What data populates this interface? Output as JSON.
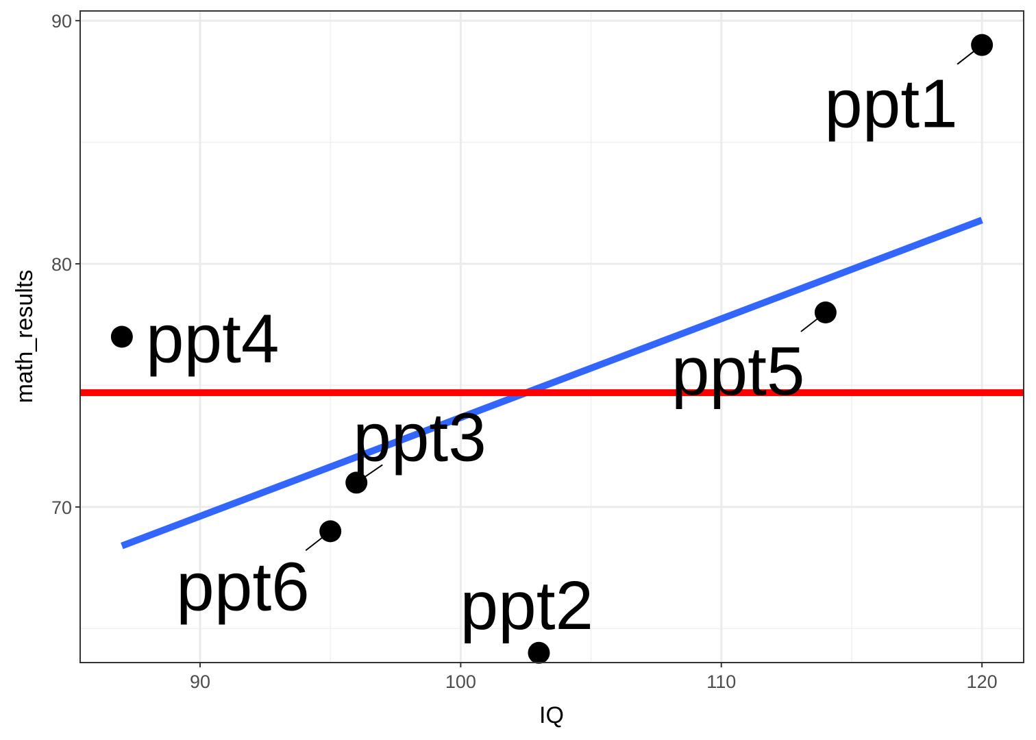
{
  "chart_data": {
    "type": "scatter",
    "title": "",
    "xlabel": "IQ",
    "ylabel": "math_results",
    "xlim": [
      85.4,
      121.6
    ],
    "ylim": [
      63.6,
      90.4
    ],
    "x_ticks": [
      90,
      100,
      110,
      120
    ],
    "y_ticks": [
      70,
      80,
      90
    ],
    "grid": true,
    "points": [
      {
        "label": "ppt1",
        "x": 120,
        "y": 89
      },
      {
        "label": "ppt2",
        "x": 103,
        "y": 64
      },
      {
        "label": "ppt3",
        "x": 96,
        "y": 71
      },
      {
        "label": "ppt4",
        "x": 87,
        "y": 77
      },
      {
        "label": "ppt5",
        "x": 114,
        "y": 78
      },
      {
        "label": "ppt6",
        "x": 95,
        "y": 69
      }
    ],
    "regression_line": {
      "x": [
        87,
        120
      ],
      "y": [
        68.4,
        81.8
      ],
      "color": "#3366FF"
    },
    "mean_line": {
      "y": 74.7,
      "color": "#FF0000"
    },
    "point_color": "#000000"
  }
}
